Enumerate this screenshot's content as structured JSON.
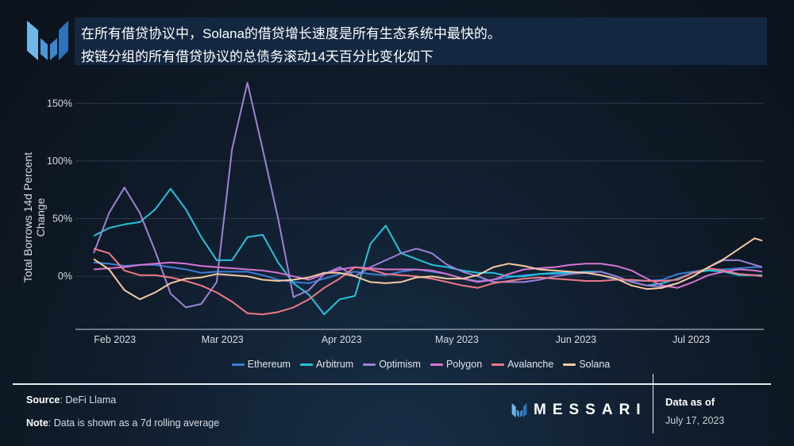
{
  "header": {
    "title_line1": "在所有借贷协议中，Solana的借贷增长速度是所有生态系统中最快的。",
    "title_line2": "按链分组的所有借贷协议的总债务滚动14天百分比变化如下",
    "logo_icon": "messari-m-logo"
  },
  "chart_data": {
    "type": "line",
    "title": "",
    "xlabel": "",
    "ylabel": "Total Borrows 14d Percent Change",
    "ylim": [
      -46,
      175
    ],
    "yticks": [
      0,
      50,
      100,
      150
    ],
    "ytick_labels": [
      "0%",
      "50%",
      "100%",
      "150%"
    ],
    "xticks": [
      "2023-02-01",
      "2023-03-01",
      "2023-04-01",
      "2023-05-01",
      "2023-06-01",
      "2023-07-01"
    ],
    "xtick_labels": [
      "Feb 2023",
      "Mar 2023",
      "Apr 2023",
      "May 2023",
      "Jun 2023",
      "Jul 2023"
    ],
    "xlim": [
      "2023-01-24",
      "2023-07-17"
    ],
    "grid": true,
    "legend_position": "bottom",
    "x": [
      "2023-01-24",
      "2023-01-28",
      "2023-02-01",
      "2023-02-05",
      "2023-02-09",
      "2023-02-13",
      "2023-02-17",
      "2023-02-21",
      "2023-02-25",
      "2023-03-01",
      "2023-03-05",
      "2023-03-09",
      "2023-03-13",
      "2023-03-17",
      "2023-03-21",
      "2023-03-25",
      "2023-03-29",
      "2023-04-02",
      "2023-04-06",
      "2023-04-10",
      "2023-04-14",
      "2023-04-18",
      "2023-04-22",
      "2023-04-26",
      "2023-04-30",
      "2023-05-04",
      "2023-05-08",
      "2023-05-12",
      "2023-05-16",
      "2023-05-20",
      "2023-05-24",
      "2023-05-28",
      "2023-06-01",
      "2023-06-05",
      "2023-06-09",
      "2023-06-13",
      "2023-06-17",
      "2023-06-21",
      "2023-06-25",
      "2023-06-29",
      "2023-07-03",
      "2023-07-07",
      "2023-07-11",
      "2023-07-15",
      "2023-07-17"
    ],
    "series": [
      {
        "name": "Ethereum",
        "color": "#3b7fd6",
        "values": [
          12,
          11,
          9,
          10,
          10,
          8,
          6,
          3,
          4,
          4,
          4,
          1,
          -3,
          -5,
          -6,
          -2,
          2,
          4,
          2,
          1,
          4,
          6,
          4,
          2,
          -2,
          -4,
          -3,
          -1,
          1,
          2,
          2,
          3,
          3,
          1,
          -3,
          -4,
          -4,
          -3,
          2,
          4,
          6,
          6,
          7,
          8,
          8
        ]
      },
      {
        "name": "Arbitrum",
        "color": "#25c3dc",
        "values": [
          35,
          42,
          45,
          47,
          58,
          76,
          58,
          34,
          14,
          14,
          34,
          36,
          12,
          -6,
          -16,
          -33,
          -20,
          -17,
          28,
          44,
          20,
          15,
          10,
          8,
          5,
          3,
          3,
          0,
          0,
          2,
          3,
          3,
          4,
          4,
          0,
          -5,
          -8,
          -6,
          -2,
          3,
          5,
          4,
          1,
          1,
          1
        ]
      },
      {
        "name": "Optimism",
        "color": "#9d82d6",
        "values": [
          20,
          55,
          77,
          55,
          22,
          -15,
          -27,
          -24,
          -5,
          110,
          168,
          110,
          50,
          -18,
          -12,
          2,
          8,
          0,
          8,
          14,
          20,
          24,
          20,
          10,
          4,
          0,
          -5,
          -5,
          -5,
          -3,
          0,
          2,
          3,
          4,
          0,
          -5,
          -8,
          -9,
          -6,
          0,
          8,
          14,
          14,
          10,
          8
        ]
      },
      {
        "name": "Polygon",
        "color": "#d675d2",
        "values": [
          6,
          7,
          8,
          10,
          11,
          12,
          11,
          9,
          8,
          7,
          6,
          5,
          3,
          0,
          -3,
          2,
          6,
          8,
          7,
          6,
          6,
          6,
          5,
          2,
          -2,
          -5,
          -3,
          2,
          6,
          7,
          8,
          10,
          11,
          11,
          9,
          5,
          -2,
          -8,
          -10,
          -5,
          1,
          4,
          6,
          5,
          4
        ]
      },
      {
        "name": "Avalanche",
        "color": "#ee7a86",
        "values": [
          24,
          20,
          5,
          1,
          1,
          -1,
          -4,
          -8,
          -14,
          -22,
          -32,
          -33,
          -31,
          -27,
          -20,
          -10,
          -2,
          8,
          6,
          2,
          1,
          0,
          -2,
          -5,
          -8,
          -10,
          -6,
          -4,
          -2,
          -1,
          -2,
          -3,
          -4,
          -4,
          -3,
          -3,
          -4,
          -4,
          -3,
          3,
          7,
          5,
          2,
          1,
          0
        ]
      },
      {
        "name": "Solana",
        "color": "#f5caa0",
        "values": [
          15,
          6,
          -12,
          -20,
          -14,
          -6,
          -2,
          -1,
          2,
          1,
          0,
          -3,
          -4,
          -3,
          -1,
          3,
          3,
          0,
          -5,
          -6,
          -5,
          -1,
          0,
          -2,
          -2,
          1,
          8,
          11,
          9,
          6,
          5,
          4,
          3,
          1,
          -2,
          -8,
          -11,
          -10,
          -6,
          0,
          8,
          15,
          24,
          33,
          31
        ]
      }
    ]
  },
  "footer": {
    "source_label": "Source",
    "source_value": "DeFi Llama",
    "note_label": "Note",
    "note_value": "Data is shown as a 7d rolling average",
    "brand": "MESSARI",
    "data_as_of_label": "Data as of",
    "data_as_of_date": "July 17, 2023"
  }
}
